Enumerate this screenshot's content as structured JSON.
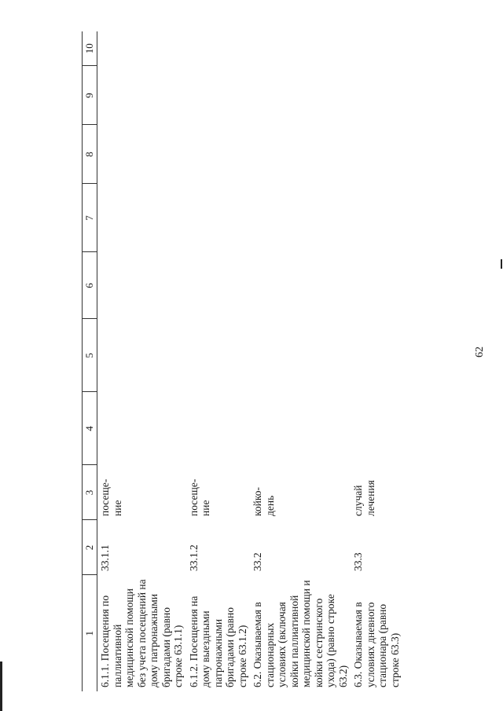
{
  "page_number": "62",
  "columns": [
    "1",
    "2",
    "3",
    "4",
    "5",
    "6",
    "7",
    "8",
    "9",
    "10"
  ],
  "rows": [
    {
      "name": "6.1.1. Посещения по паллиативной медицинской помощи без учета посещений на дому патронажными бригадами (равно строке 63.1.1)",
      "code": "33.1.1",
      "unit": "посеще-ние"
    },
    {
      "name": "6.1.2. Посещения на дому выездными патронажными бригадами (равно строке 63.1.2)",
      "code": "33.1.2",
      "unit": "посеще-ние"
    },
    {
      "name": "6.2. Оказываемая в стационарных условиях (включая койки паллиативной медицинской помощи и койки сестринского ухода) (равно строке 63.2)",
      "code": "33.2",
      "unit": "койко-день"
    },
    {
      "name": "6.3. Оказываемая в условиях дневного стационара (равно строке 63.3)",
      "code": "33.3",
      "unit": "случай лечения"
    }
  ]
}
